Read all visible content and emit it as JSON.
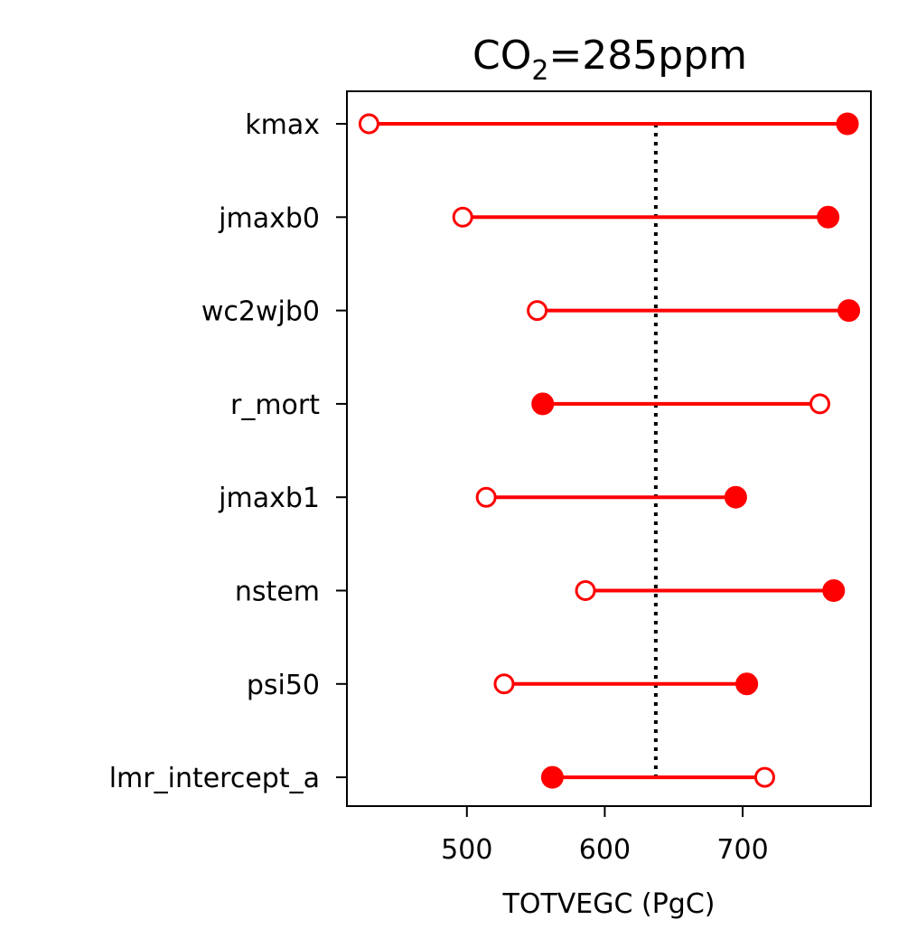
{
  "chart_data": {
    "type": "dumbbell",
    "title": {
      "main": "CO",
      "subscript": "2",
      "rest": "=285ppm"
    },
    "xlabel": "TOTVEGC (PgC)",
    "ylabel": "",
    "xlim": [
      413,
      793
    ],
    "xticks": [
      500,
      600,
      700
    ],
    "xtick_labels": [
      "500",
      "600",
      "700"
    ],
    "reference_value": 637,
    "grid": false,
    "legend": "none",
    "colors": {
      "series": "#ff0000",
      "reference": "#000000",
      "axes": "#000000"
    },
    "categories": [
      "kmax",
      "jmaxb0",
      "wc2wjb0",
      "r_mort",
      "jmaxb1",
      "nstem",
      "psi50",
      "lmr_intercept_a"
    ],
    "series": [
      {
        "marker": "open-circle",
        "values": [
          429,
          497,
          551,
          756,
          514,
          586,
          527,
          716
        ]
      },
      {
        "marker": "filled-circle",
        "values": [
          776,
          762,
          777,
          555,
          695,
          766,
          703,
          562
        ]
      }
    ]
  }
}
